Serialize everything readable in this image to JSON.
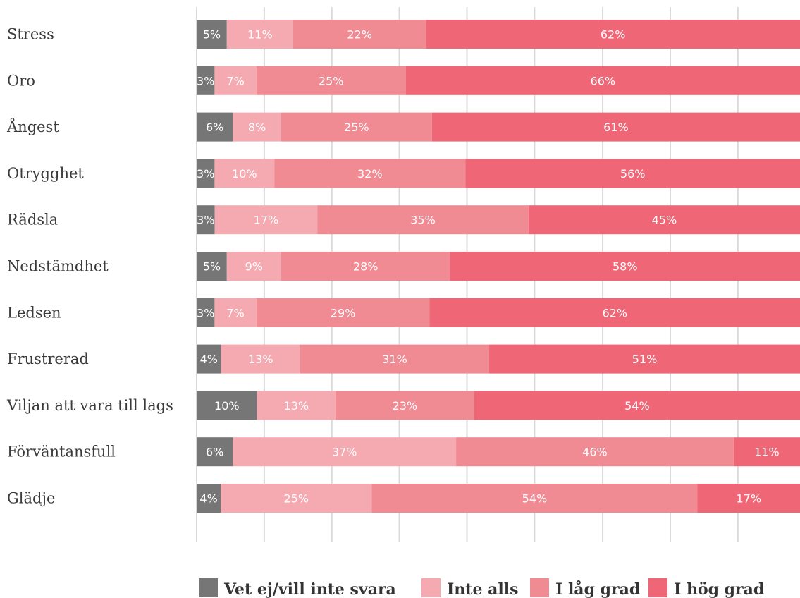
{
  "chart_data": {
    "type": "bar",
    "orientation": "horizontal",
    "stacked": true,
    "categories": [
      "Stress",
      "Oro",
      "Ångest",
      "Otrygghet",
      "Rädsla",
      "Nedstämdhet",
      "Ledsen",
      "Frustrerad",
      "Viljan att vara till lags",
      "Förväntansfull",
      "Glädje"
    ],
    "series": [
      {
        "name": "Vet ej/vill inte svara",
        "color": "#767676",
        "values": [
          5,
          3,
          6,
          3,
          3,
          5,
          3,
          4,
          10,
          6,
          4
        ]
      },
      {
        "name": "Inte alls",
        "color": "#f5a9b1",
        "values": [
          11,
          7,
          8,
          10,
          17,
          9,
          7,
          13,
          13,
          37,
          25
        ]
      },
      {
        "name": "I låg grad",
        "color": "#f08a93",
        "values": [
          22,
          25,
          25,
          32,
          35,
          28,
          29,
          31,
          23,
          46,
          54
        ]
      },
      {
        "name": "I hög grad",
        "color": "#ef6776",
        "values": [
          62,
          66,
          61,
          56,
          45,
          58,
          62,
          51,
          54,
          11,
          17
        ]
      }
    ],
    "value_suffix": "%",
    "grid": true,
    "legend_position": "bottom"
  }
}
